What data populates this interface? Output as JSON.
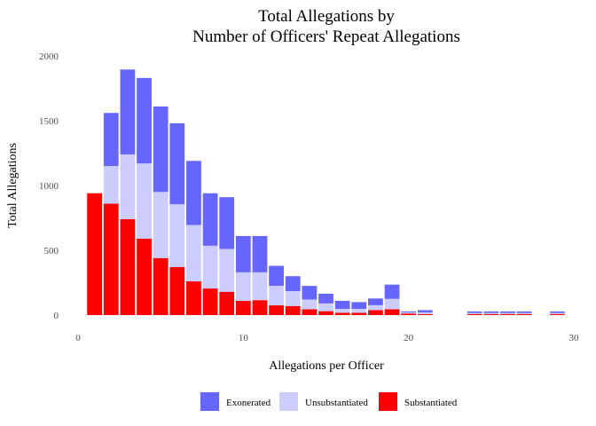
{
  "chart_data": {
    "type": "bar",
    "stacked": true,
    "title_lines": [
      "Total Allegations by",
      "Number of Officers' Repeat Allegations"
    ],
    "xlabel": "Allegations per Officer",
    "ylabel": "Total Allegations",
    "xlim": [
      0,
      30
    ],
    "ylim": [
      0,
      2000
    ],
    "xticks": [
      0,
      10,
      20,
      30
    ],
    "yticks": [
      0,
      500,
      1000,
      1500,
      2000
    ],
    "grid": false,
    "legend_position": "bottom",
    "x": [
      1,
      2,
      3,
      4,
      5,
      6,
      7,
      8,
      9,
      10,
      11,
      12,
      13,
      14,
      15,
      16,
      17,
      18,
      19,
      20,
      21,
      24,
      25,
      26,
      27,
      29
    ],
    "series": [
      {
        "name": "Substantiated",
        "color": "#ff0000",
        "values": [
          940,
          860,
          740,
          590,
          440,
          370,
          260,
          205,
          180,
          110,
          115,
          75,
          70,
          45,
          30,
          18,
          18,
          38,
          45,
          12,
          8,
          8,
          8,
          8,
          8,
          8
        ]
      },
      {
        "name": "Unsubstantiated",
        "color": "#ccccff",
        "values": [
          0,
          290,
          500,
          580,
          510,
          485,
          435,
          330,
          330,
          220,
          215,
          150,
          115,
          75,
          60,
          30,
          30,
          38,
          80,
          8,
          12,
          8,
          8,
          8,
          8,
          8
        ]
      },
      {
        "name": "Exonerated",
        "color": "#6666ff",
        "values": [
          0,
          410,
          655,
          660,
          660,
          625,
          495,
          405,
          400,
          280,
          280,
          155,
          115,
          105,
          75,
          62,
          52,
          52,
          110,
          8,
          18,
          12,
          12,
          12,
          12,
          12
        ]
      }
    ],
    "legend": [
      {
        "label": "Exonerated",
        "color": "#6666ff"
      },
      {
        "label": "Unsubstantiated",
        "color": "#ccccff"
      },
      {
        "label": "Substantiated",
        "color": "#ff0000"
      }
    ]
  }
}
